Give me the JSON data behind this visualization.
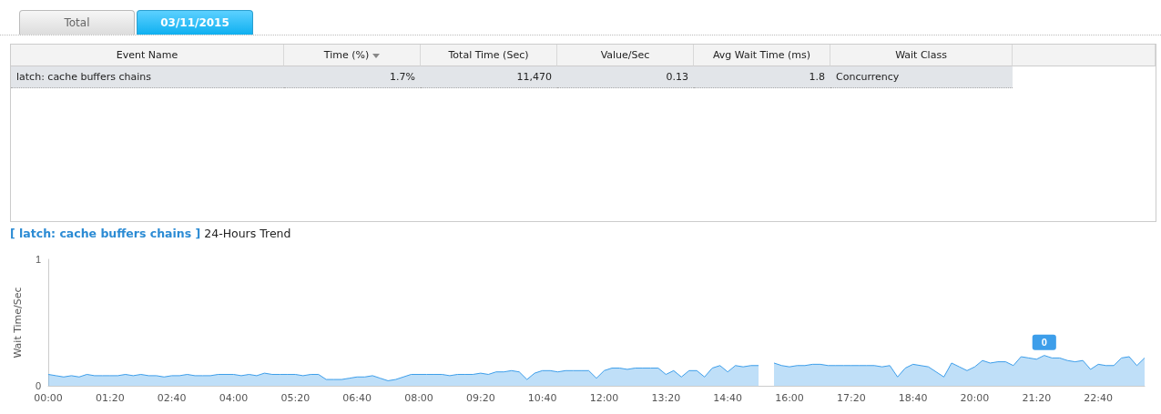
{
  "chart_data": [
    {
      "type": "other",
      "annotations": [
        "Total",
        "03/11/2015",
        "Event Name",
        "Time (%)",
        "Total Time (Sec)",
        "Value/Sec",
        "Avg Wait Time (ms)",
        "Wait Class",
        "latch: cache buffers chains",
        "1.7%",
        "11,470",
        "0.13",
        "1.8",
        "Concurrency"
      ]
    },
    {
      "type": "area",
      "title": "[ latch: cache buffers chains ]",
      "subtitle": "24-Hours Trend",
      "ylabel": "Wait Time/Sec",
      "ylim": [
        0,
        1
      ],
      "yticks": [
        0,
        1
      ],
      "categories": [
        "00:00",
        null,
        null,
        null,
        null,
        null,
        null,
        null,
        "01:20",
        null,
        null,
        null,
        null,
        null,
        null,
        null,
        "02:40",
        null,
        null,
        null,
        null,
        null,
        null,
        null,
        "04:00",
        null,
        null,
        null,
        null,
        null,
        null,
        null,
        "05:20",
        null,
        null,
        null,
        null,
        null,
        null,
        null,
        "06:40",
        null,
        null,
        null,
        null,
        null,
        null,
        null,
        "08:00",
        null,
        null,
        null,
        null,
        null,
        null,
        null,
        "09:20",
        null,
        null,
        null,
        null,
        null,
        null,
        null,
        "10:40",
        null,
        null,
        null,
        null,
        null,
        null,
        null,
        "12:00",
        null,
        null,
        null,
        null,
        null,
        null,
        null,
        "13:20",
        null,
        null,
        null,
        null,
        null,
        null,
        null,
        "14:40",
        null,
        null,
        null,
        null,
        null,
        null,
        null,
        "16:00",
        null,
        null,
        null,
        null,
        null,
        null,
        null,
        "17:20",
        null,
        null,
        null,
        null,
        null,
        null,
        null,
        "18:40",
        null,
        null,
        null,
        null,
        null,
        null,
        null,
        "20:00",
        null,
        null,
        null,
        null,
        null,
        null,
        null,
        "21:20",
        null,
        null,
        null,
        null,
        null,
        null,
        null,
        "22:40",
        null,
        null,
        null,
        null,
        null,
        null
      ],
      "series": [
        {
          "color": "#3d9eea",
          "values": [
            0.09,
            0.08,
            0.07,
            0.08,
            0.07,
            0.09,
            0.08,
            0.08,
            0.08,
            0.08,
            0.09,
            0.08,
            0.09,
            0.08,
            0.08,
            0.07,
            0.08,
            0.08,
            0.09,
            0.08,
            0.08,
            0.08,
            0.09,
            0.09,
            0.09,
            0.08,
            0.09,
            0.08,
            0.1,
            0.09,
            0.09,
            0.09,
            0.09,
            0.08,
            0.09,
            0.09,
            0.05,
            0.05,
            0.05,
            0.06,
            0.07,
            0.07,
            0.08,
            0.06,
            0.04,
            0.05,
            0.07,
            0.09,
            0.09,
            0.09,
            0.09,
            0.09,
            0.08,
            0.09,
            0.09,
            0.09,
            0.1,
            0.09,
            0.11,
            0.11,
            0.12,
            0.11,
            0.05,
            0.1,
            0.12,
            0.12,
            0.11,
            0.12,
            0.12,
            0.12,
            0.12,
            0.06,
            0.12,
            0.14,
            0.14,
            0.13,
            0.14,
            0.14,
            0.14,
            0.14,
            0.09,
            0.12,
            0.07,
            0.12,
            0.12,
            0.07,
            0.14,
            0.16,
            0.11,
            0.16,
            0.15,
            0.16,
            0.16,
            null,
            0.18,
            0.16,
            0.15,
            0.16,
            0.16,
            0.17,
            0.17,
            0.16,
            0.16,
            0.16,
            0.16,
            0.16,
            0.16,
            0.16,
            0.15,
            0.16,
            0.07,
            0.14,
            0.17,
            0.16,
            0.15,
            0.11,
            0.07,
            0.18,
            0.15,
            0.12,
            0.15,
            0.2,
            0.18,
            0.19,
            0.19,
            0.16,
            0.23,
            0.22,
            0.21,
            0.24,
            0.22,
            0.22,
            0.2,
            0.19,
            0.2,
            0.13,
            0.17,
            0.16,
            0.16,
            0.22,
            0.23,
            0.16,
            0.22
          ],
          "value_labels": [
            null,
            null,
            null,
            null,
            null,
            null,
            null,
            null,
            null,
            null,
            null,
            null,
            null,
            null,
            null,
            null,
            null,
            null,
            null,
            null,
            null,
            null,
            null,
            null,
            null,
            null,
            null,
            null,
            null,
            null,
            null,
            null,
            null,
            null,
            null,
            null,
            null,
            null,
            null,
            null,
            null,
            null,
            null,
            null,
            null,
            null,
            null,
            null,
            null,
            null,
            null,
            null,
            null,
            null,
            null,
            null,
            null,
            null,
            null,
            null,
            null,
            null,
            null,
            null,
            null,
            null,
            null,
            null,
            null,
            null,
            null,
            null,
            null,
            null,
            null,
            null,
            null,
            null,
            null,
            null,
            null,
            null,
            null,
            null,
            null,
            null,
            null,
            null,
            null,
            null,
            null,
            null,
            null,
            null,
            null,
            null,
            null,
            null,
            null,
            null,
            null,
            null,
            null,
            null,
            null,
            null,
            null,
            null,
            null,
            null,
            null,
            null,
            null,
            null,
            null,
            null,
            null,
            null,
            null,
            null,
            null,
            null,
            null,
            null,
            null,
            null,
            null,
            null,
            null,
            "0",
            null,
            null,
            null,
            null,
            null,
            null,
            null,
            null,
            null,
            null,
            null,
            null,
            null
          ]
        }
      ]
    }
  ]
}
